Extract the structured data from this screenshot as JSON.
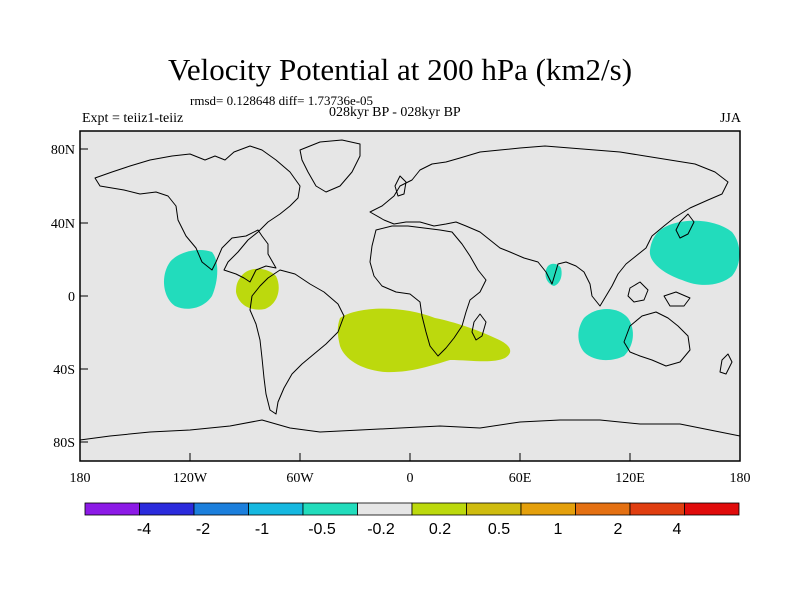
{
  "title": "Velocity Potential at 200 hPa (km2/s)",
  "stats_line": "rmsd= 0.128648 diff= 1.73736e-05",
  "experiment": "Expt = teiiz1-teiiz",
  "period": "028kyr BP - 028kyr BP",
  "season": "JJA",
  "axes": {
    "x_ticks": [
      "180",
      "120W",
      "60W",
      "0",
      "60E",
      "120E",
      "180"
    ],
    "y_ticks": [
      "80N",
      "40N",
      "0",
      "40S",
      "80S"
    ]
  },
  "colors": {
    "background": "#e6e6e6",
    "positive_fill": "#bcd90d",
    "negative_fill": "#22dcbc"
  },
  "colorbar": {
    "colors": [
      "#8c1ae6",
      "#2b2bdc",
      "#1c7fdc",
      "#16b8e0",
      "#22dcbc",
      "#e6e6e6",
      "#bcd90d",
      "#cfbc0f",
      "#e4a00c",
      "#e47012",
      "#e03e10",
      "#e00b0b"
    ],
    "labels": [
      "-4",
      "-2",
      "-1",
      "-0.5",
      "-0.2",
      "0.2",
      "0.5",
      "1",
      "2",
      "4"
    ]
  },
  "anomalies": [
    {
      "sign": "negative",
      "region": "tropical eastern Pacific"
    },
    {
      "sign": "positive",
      "region": "northwestern South America"
    },
    {
      "sign": "positive",
      "region": "South Atlantic and southern Africa"
    },
    {
      "sign": "negative",
      "region": "southern India"
    },
    {
      "sign": "negative",
      "region": "western Pacific near Japan"
    },
    {
      "sign": "negative",
      "region": "southeastern Indian Ocean"
    }
  ]
}
